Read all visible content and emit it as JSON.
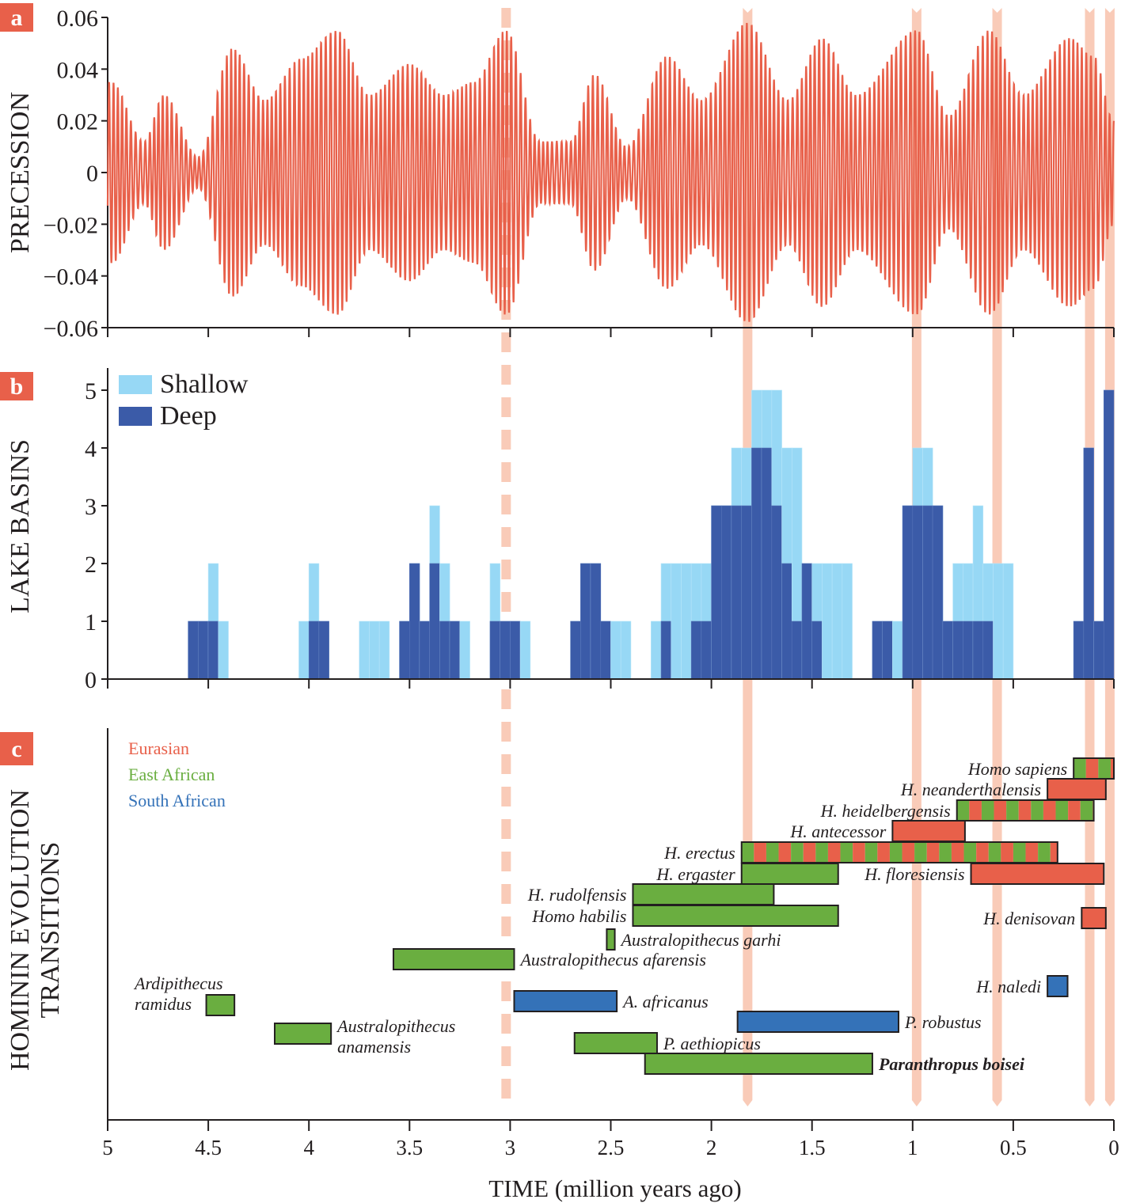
{
  "chart_data": [
    {
      "panel": "a",
      "type": "line",
      "ylabel": "PRECESSION",
      "xlim": [
        5,
        0
      ],
      "ylim": [
        -0.06,
        0.06
      ],
      "yticks": [
        "0.06",
        "0.04",
        "0.02",
        "0",
        "−0.02",
        "−0.04",
        "−0.06"
      ],
      "ytick_values": [
        0.06,
        0.04,
        0.02,
        0,
        -0.02,
        -0.04,
        -0.06
      ],
      "series_color": "#e8604a",
      "description": "Orbital precession index oscillating with ~23 kyr period and ~100/400 kyr amplitude modulation",
      "envelope_peaks": [
        {
          "t": 4.98,
          "amp": 0.035
        },
        {
          "t": 4.82,
          "amp": 0.012
        },
        {
          "t": 4.72,
          "amp": 0.03
        },
        {
          "t": 4.55,
          "amp": 0.006
        },
        {
          "t": 4.38,
          "amp": 0.048
        },
        {
          "t": 4.22,
          "amp": 0.028
        },
        {
          "t": 4.04,
          "amp": 0.044
        },
        {
          "t": 3.86,
          "amp": 0.055
        },
        {
          "t": 3.7,
          "amp": 0.03
        },
        {
          "t": 3.5,
          "amp": 0.042
        },
        {
          "t": 3.33,
          "amp": 0.03
        },
        {
          "t": 3.18,
          "amp": 0.035
        },
        {
          "t": 3.02,
          "amp": 0.055
        },
        {
          "t": 2.85,
          "amp": 0.012
        },
        {
          "t": 2.7,
          "amp": 0.012
        },
        {
          "t": 2.58,
          "amp": 0.038
        },
        {
          "t": 2.42,
          "amp": 0.01
        },
        {
          "t": 2.22,
          "amp": 0.045
        },
        {
          "t": 2.05,
          "amp": 0.028
        },
        {
          "t": 1.82,
          "amp": 0.058
        },
        {
          "t": 1.62,
          "amp": 0.028
        },
        {
          "t": 1.45,
          "amp": 0.052
        },
        {
          "t": 1.28,
          "amp": 0.03
        },
        {
          "t": 0.98,
          "amp": 0.055
        },
        {
          "t": 0.82,
          "amp": 0.022
        },
        {
          "t": 0.62,
          "amp": 0.055
        },
        {
          "t": 0.45,
          "amp": 0.03
        },
        {
          "t": 0.22,
          "amp": 0.052
        },
        {
          "t": 0.1,
          "amp": 0.045
        },
        {
          "t": 0.0,
          "amp": 0.02
        }
      ]
    },
    {
      "panel": "b",
      "type": "bar",
      "stacked": false,
      "ylabel": "LAKE BASINS",
      "xlim": [
        5,
        0
      ],
      "ylim": [
        0,
        5.4
      ],
      "yticks": [
        "0",
        "1",
        "2",
        "3",
        "4",
        "5"
      ],
      "bin_width_ma": 0.05,
      "legend": [
        {
          "label": "Shallow",
          "color": "#97d8f5"
        },
        {
          "label": "Deep",
          "color": "#3b5ba8"
        }
      ],
      "legend_position": "top-left",
      "bins_start_ma": [
        4.6,
        4.55,
        4.5,
        4.45,
        4.05,
        4.0,
        3.95,
        3.75,
        3.7,
        3.65,
        3.55,
        3.5,
        3.45,
        3.4,
        3.35,
        3.3,
        3.25,
        3.1,
        3.05,
        3.0,
        2.95,
        2.7,
        2.65,
        2.6,
        2.55,
        2.5,
        2.45,
        2.3,
        2.25,
        2.2,
        2.15,
        2.1,
        2.05,
        2.0,
        1.95,
        1.9,
        1.85,
        1.8,
        1.75,
        1.7,
        1.65,
        1.6,
        1.55,
        1.5,
        1.45,
        1.4,
        1.35,
        1.2,
        1.15,
        1.1,
        1.05,
        1.0,
        0.95,
        0.9,
        0.85,
        0.8,
        0.75,
        0.7,
        0.65,
        0.6,
        0.55,
        0.2,
        0.15,
        0.1,
        0.05
      ],
      "total_counts": [
        1,
        1,
        2,
        1,
        1,
        2,
        1,
        1,
        1,
        1,
        1,
        2,
        1,
        3,
        2,
        1,
        1,
        2,
        1,
        1,
        1,
        1,
        2,
        2,
        1,
        1,
        1,
        1,
        2,
        2,
        2,
        2,
        2,
        3,
        3,
        4,
        4,
        5,
        5,
        5,
        4,
        4,
        2,
        2,
        2,
        2,
        2,
        1,
        1,
        1,
        3,
        4,
        4,
        3,
        1,
        2,
        2,
        3,
        2,
        2,
        2,
        1,
        4,
        1,
        5
      ],
      "deep_counts": [
        1,
        1,
        1,
        0,
        0,
        1,
        1,
        0,
        0,
        0,
        1,
        2,
        1,
        2,
        1,
        1,
        0,
        1,
        1,
        1,
        0,
        1,
        2,
        2,
        1,
        0,
        0,
        0,
        1,
        0,
        0,
        1,
        1,
        3,
        3,
        3,
        3,
        4,
        4,
        3,
        2,
        1,
        2,
        1,
        0,
        0,
        0,
        1,
        1,
        0,
        3,
        3,
        3,
        3,
        1,
        1,
        1,
        1,
        1,
        0,
        0,
        1,
        4,
        1,
        5
      ]
    },
    {
      "panel": "c",
      "type": "timeline",
      "ylabel_line1": "HOMININ EVOLUTION",
      "ylabel_line2": "TRANSITIONS",
      "xlim": [
        5,
        0
      ],
      "region_legend": [
        {
          "label": "Eurasian",
          "color": "#e8604a"
        },
        {
          "label": "East African",
          "color": "#6aae40"
        },
        {
          "label": "South African",
          "color": "#3472b8"
        }
      ],
      "species": [
        {
          "name": "Homo sapiens",
          "start": 0.2,
          "end": 0.0,
          "regions": [
            "East African",
            "Eurasian"
          ],
          "label_side": "left"
        },
        {
          "name": "H. neanderthalensis",
          "start": 0.33,
          "end": 0.04,
          "regions": [
            "Eurasian"
          ],
          "label_side": "left"
        },
        {
          "name": "H. heidelbergensis",
          "start": 0.78,
          "end": 0.1,
          "regions": [
            "East African",
            "Eurasian"
          ],
          "label_side": "left"
        },
        {
          "name": "H. antecessor",
          "start": 1.1,
          "end": 0.74,
          "regions": [
            "Eurasian"
          ],
          "label_side": "left"
        },
        {
          "name": "H. erectus",
          "start": 1.85,
          "end": 0.28,
          "regions": [
            "East African",
            "Eurasian"
          ],
          "label_side": "left"
        },
        {
          "name": "H. ergaster",
          "start": 1.85,
          "end": 1.37,
          "regions": [
            "East African"
          ],
          "label_side": "left"
        },
        {
          "name": "H. floresiensis",
          "start": 0.71,
          "end": 0.05,
          "regions": [
            "Eurasian"
          ],
          "label_side": "left"
        },
        {
          "name": "H. rudolfensis",
          "start": 2.39,
          "end": 1.69,
          "regions": [
            "East African"
          ],
          "label_side": "left"
        },
        {
          "name": "Homo habilis",
          "start": 2.39,
          "end": 1.37,
          "regions": [
            "East African"
          ],
          "label_side": "left"
        },
        {
          "name": "H. denisovan",
          "start": 0.16,
          "end": 0.04,
          "regions": [
            "Eurasian"
          ],
          "label_side": "left"
        },
        {
          "name": "Australopithecus garhi",
          "start": 2.52,
          "end": 2.48,
          "regions": [
            "East African"
          ],
          "label_side": "right"
        },
        {
          "name": "Australopithecus afarensis",
          "start": 3.58,
          "end": 2.98,
          "regions": [
            "East African"
          ],
          "label_side": "right"
        },
        {
          "name": "Ardipithecus ramidus",
          "start": 4.51,
          "end": 4.37,
          "regions": [
            "East African"
          ],
          "label_side": "left"
        },
        {
          "name": "H. naledi",
          "start": 0.33,
          "end": 0.23,
          "regions": [
            "South African"
          ],
          "label_side": "left"
        },
        {
          "name": "A. africanus",
          "start": 2.98,
          "end": 2.47,
          "regions": [
            "South African"
          ],
          "label_side": "right"
        },
        {
          "name": "P. robustus",
          "start": 1.87,
          "end": 1.07,
          "regions": [
            "South African"
          ],
          "label_side": "right"
        },
        {
          "name": "Australopithecus anamensis",
          "start": 4.17,
          "end": 3.89,
          "regions": [
            "East African"
          ],
          "label_side": "right"
        },
        {
          "name": "P. aethiopicus",
          "start": 2.68,
          "end": 2.27,
          "regions": [
            "East African"
          ],
          "label_side": "right"
        },
        {
          "name": "Paranthropus boisei",
          "start": 2.33,
          "end": 1.2,
          "regions": [
            "East African"
          ],
          "label_side": "right"
        }
      ]
    }
  ],
  "shared_x_axis": {
    "label": "TIME (million years ago)",
    "ticks": [
      "5",
      "4.5",
      "4",
      "3.5",
      "3",
      "2.5",
      "2",
      "1.5",
      "1",
      "0.5",
      "0"
    ],
    "tick_values": [
      5,
      4.5,
      4,
      3.5,
      3,
      2.5,
      2,
      1.5,
      1,
      0.5,
      0
    ]
  },
  "highlight_bands": {
    "color": "#f9cbb8",
    "dashed_at_ma": 3.02,
    "solid_at_ma": [
      1.82,
      0.98,
      0.58,
      0.12,
      0.02
    ]
  },
  "panel_letters": [
    "a",
    "b",
    "c"
  ],
  "panel_letter_color": "#e8604a"
}
